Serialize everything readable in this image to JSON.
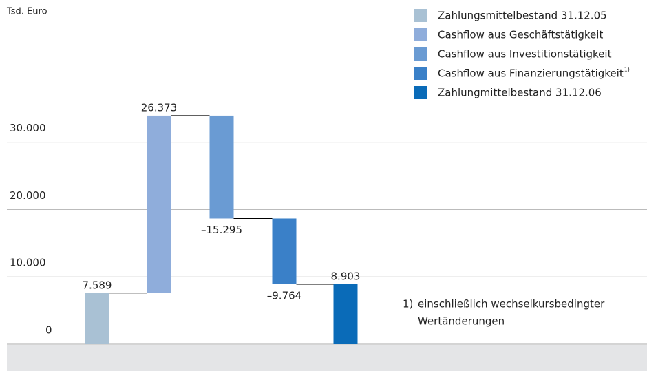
{
  "chart_data": {
    "type": "waterfall",
    "unit_label": "Tsd. Euro",
    "categories": [
      "Zahlungsmittelbestand 31.12.05",
      "Cashflow aus Geschäftstätigkeit",
      "Cashflow aus Investitionstätigkeit",
      "Cashflow aus Finanzierungstätigkeit",
      "Zahlungmittelbestand 31.12.06"
    ],
    "values": [
      7589,
      26373,
      -15295,
      -9764,
      8903
    ],
    "value_labels": [
      "7.589",
      "26.373",
      "–15.295",
      "–9.764",
      "8.903"
    ],
    "colors": [
      "#a9c1d4",
      "#8faddb",
      "#6a9bd3",
      "#3a80c8",
      "#0a6bb8"
    ],
    "last_is_total": true,
    "ylim": [
      0,
      36000
    ],
    "yticks": [
      0,
      {
        "value": 10000,
        "label": "10.000"
      },
      {
        "value": 20000,
        "label": "20.000"
      },
      {
        "value": 30000,
        "label": "30.000"
      }
    ],
    "grid": true,
    "legend": "top-right",
    "footnote": {
      "marker": "1)",
      "lines": [
        "einschließlich wechselkursbedingter",
        "Wertänderungen"
      ]
    }
  }
}
